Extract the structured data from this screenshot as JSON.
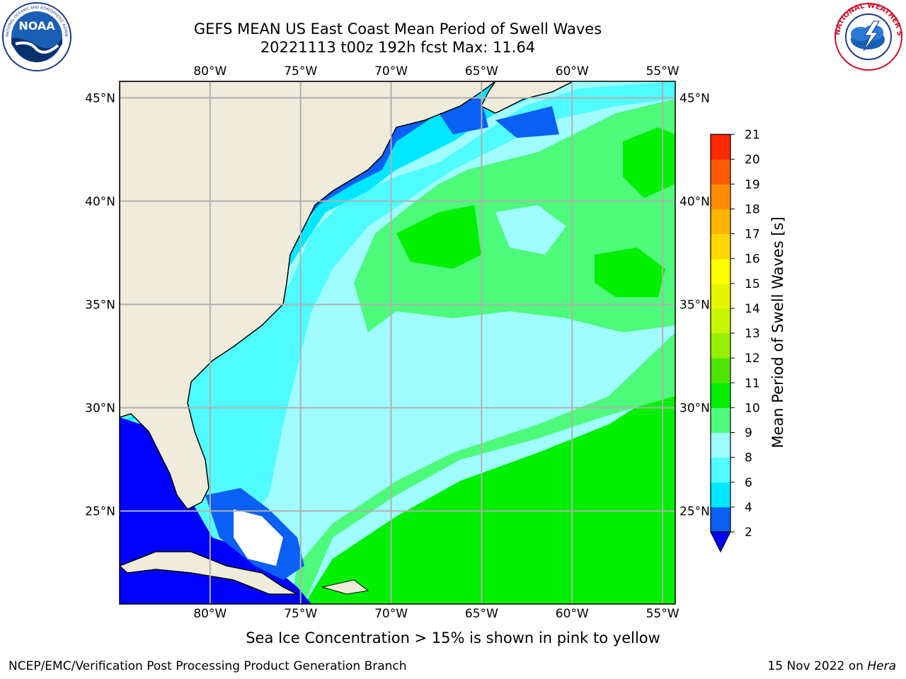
{
  "header": {
    "title_line1": "GEFS MEAN US East Coast Mean Period of Swell Waves",
    "title_line2": "20221113 t00z 192h fcst   Max: 11.64"
  },
  "logos": {
    "left": "noaa-logo",
    "left_text": "NOAA",
    "left_ring_text": "NATIONAL OCEANIC AND ATMOSPHERIC ADMINISTRATION · U.S. DEPARTMENT OF COMMERCE",
    "right": "nws-logo",
    "right_ring_text": "NATIONAL WEATHER SERVICE"
  },
  "map": {
    "lon_labels": [
      "80°W",
      "75°W",
      "70°W",
      "65°W",
      "60°W",
      "55°W"
    ],
    "lat_labels": [
      "45°N",
      "40°N",
      "35°N",
      "30°N",
      "25°N"
    ],
    "lon_values": [
      -80,
      -75,
      -70,
      -65,
      -60,
      -55
    ],
    "lat_values": [
      45,
      40,
      35,
      30,
      25
    ],
    "lon_range": [
      -85,
      -54.3
    ],
    "lat_range": [
      20.5,
      45.8
    ],
    "grid": true,
    "land_color": "#efecdc",
    "grid_color": "#b0b0b0"
  },
  "colorbar": {
    "label": "Mean Period of Swell Waves [s]",
    "ticks": [
      "2",
      "4",
      "6",
      "8",
      "9",
      "10",
      "11",
      "12",
      "13",
      "14",
      "15",
      "16",
      "17",
      "18",
      "19",
      "20",
      "21"
    ],
    "colors": [
      "#0a5ff5",
      "#00e8ff",
      "#4ffcff",
      "#9ffcff",
      "#4dfa7a",
      "#00f000",
      "#4de600",
      "#96f000",
      "#c8f500",
      "#e6f500",
      "#ffff00",
      "#ffd700",
      "#ffb400",
      "#ff8c00",
      "#ff5a00",
      "#ff2800"
    ],
    "extend_color": "#0000ff"
  },
  "footer": {
    "note": "Sea Ice Concentration > 15% is shown in pink to yellow",
    "credit": "NCEP/EMC/Verification Post Processing Product Generation Branch",
    "date": "15 Nov 2022 on ",
    "host": "Hera"
  }
}
